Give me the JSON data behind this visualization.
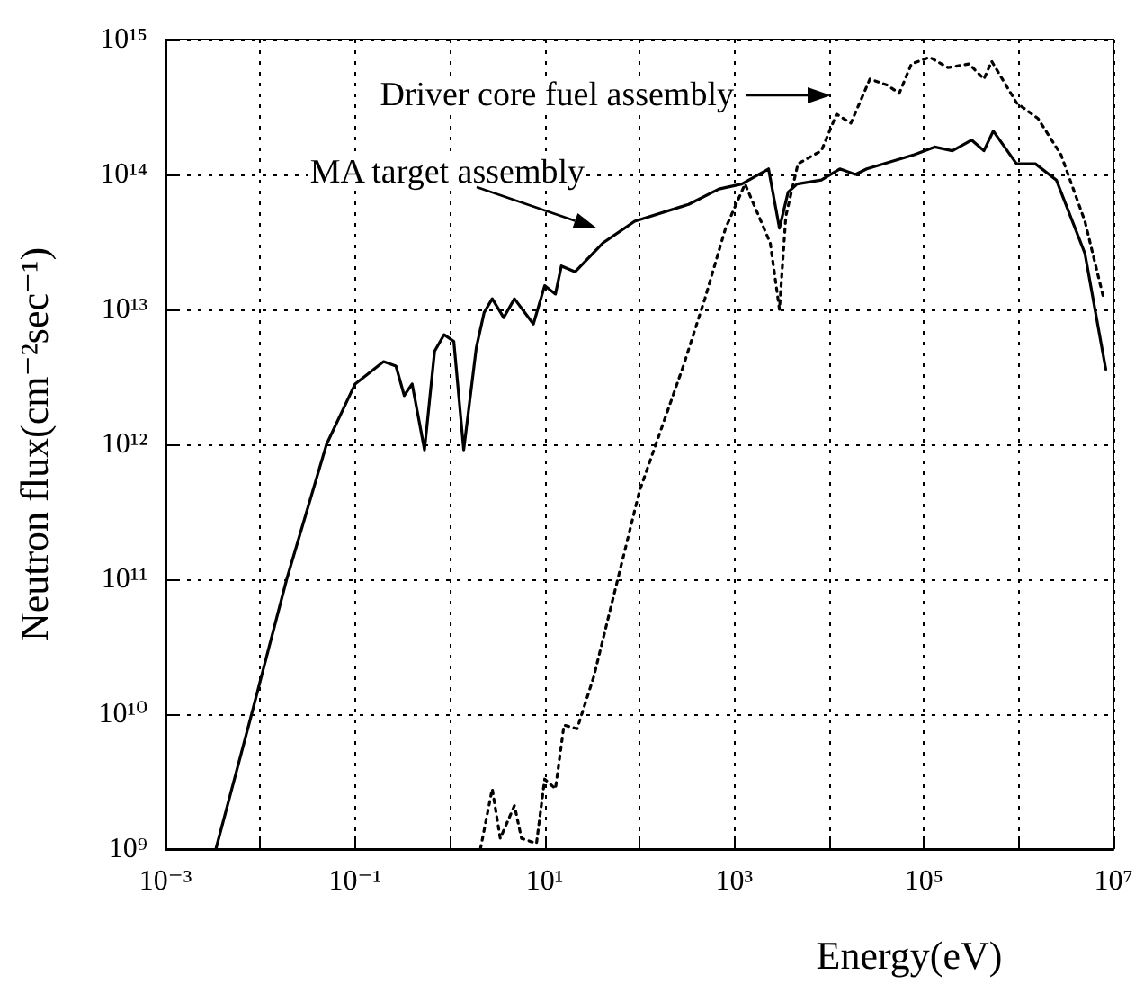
{
  "chart_data": {
    "type": "line",
    "xlabel": "Energy(eV)",
    "ylabel": "Neutron flux(cm⁻²sec⁻¹)",
    "log": "xy",
    "grid": true,
    "marker": "none",
    "xlim": [
      0.001,
      10000000
    ],
    "ylim": [
      1000000000,
      1000000000000000
    ],
    "xticks": [
      {
        "value": 0.001,
        "label": "10⁻³"
      },
      {
        "value": 0.01,
        "label": null
      },
      {
        "value": 0.1,
        "label": "10⁻¹"
      },
      {
        "value": 1,
        "label": null
      },
      {
        "value": 10,
        "label": "10¹"
      },
      {
        "value": 100,
        "label": null
      },
      {
        "value": 1000,
        "label": "10³"
      },
      {
        "value": 10000,
        "label": null
      },
      {
        "value": 100000,
        "label": "10⁵"
      },
      {
        "value": 1000000,
        "label": null
      },
      {
        "value": 10000000,
        "label": "10⁷"
      }
    ],
    "yticks": [
      {
        "value": 1000000000,
        "label": "10⁹"
      },
      {
        "value": 10000000000,
        "label": "10¹⁰"
      },
      {
        "value": 100000000000,
        "label": "10¹¹"
      },
      {
        "value": 1000000000000,
        "label": "10¹²"
      },
      {
        "value": 10000000000000,
        "label": "10¹³"
      },
      {
        "value": 100000000000000,
        "label": "10¹⁴"
      },
      {
        "value": 1000000000000000,
        "label": "10¹⁵"
      }
    ],
    "annotations": [
      "Driver core fuel assembly",
      "MA target assembly"
    ],
    "series": [
      {
        "color": "#000000",
        "line_style": "solid",
        "x": [
          0.0034,
          0.0081,
          0.019,
          0.05,
          0.1,
          0.2,
          0.27,
          0.33,
          0.4,
          0.54,
          0.69,
          0.87,
          1.1,
          1.4,
          1.9,
          2.3,
          2.8,
          3.7,
          4.8,
          7.6,
          10,
          13,
          15,
          21,
          41,
          89,
          330,
          690,
          1200,
          2300,
          3000,
          3700,
          4600,
          8300,
          13000,
          19000,
          25000,
          55000,
          79000,
          130000,
          200000,
          320000,
          430000,
          540000,
          950000,
          1500000,
          2500000,
          5000000,
          8300000
        ],
        "values": [
          1000000000.0,
          10000000000.0,
          100000000000.0,
          1000000000000.0,
          2800000000000.0,
          4100000000000.0,
          3800000000000.0,
          2300000000000.0,
          2800000000000.0,
          910000000000.0,
          4900000000000.0,
          6500000000000.0,
          5800000000000.0,
          910000000000.0,
          5200000000000.0,
          9500000000000.0,
          12000000000000.0,
          8700000000000.0,
          12000000000000.0,
          7800000000000.0,
          15000000000000.0,
          13000000000000.0,
          21000000000000.0,
          19000000000000.0,
          31000000000000.0,
          45000000000000.0,
          60000000000000.0,
          78000000000000.0,
          85000000000000.0,
          110000000000000.0,
          40000000000000.0,
          74000000000000.0,
          85000000000000.0,
          91000000000000.0,
          110000000000000.0,
          100000000000000.0,
          110000000000000.0,
          130000000000000.0,
          140000000000000.0,
          160000000000000.0,
          150000000000000.0,
          180000000000000.0,
          150000000000000.0,
          210000000000000.0,
          120000000000000.0,
          120000000000000.0,
          91000000000000.0,
          26000000000000.0,
          3600000000000.0
        ]
      },
      {
        "color": "#000000",
        "line_style": "dotted",
        "x": [
          2.1,
          2.8,
          3.4,
          4.8,
          5.7,
          8.2,
          10,
          13,
          16,
          22,
          33,
          100,
          290,
          490,
          810,
          1300,
          2400,
          3000,
          3500,
          4700,
          8300,
          12000,
          17000,
          27000,
          41000,
          55000,
          74000,
          115000,
          180000,
          300000,
          430000,
          520000,
          950000,
          1600000,
          2800000,
          5000000,
          7900000
        ],
        "values": [
          1000000000.0,
          2800000000.0,
          1200000000.0,
          2100000000.0,
          1200000000.0,
          1100000000.0,
          3300000000.0,
          2800000000.0,
          8300000000.0,
          7800000000.0,
          19000000000.0,
          450000000000.0,
          3800000000000.0,
          12000000000000.0,
          40000000000000.0,
          85000000000000.0,
          31000000000000.0,
          10000000000000.0,
          49000000000000.0,
          120000000000000.0,
          150000000000000.0,
          280000000000000.0,
          240000000000000.0,
          510000000000000.0,
          460000000000000.0,
          400000000000000.0,
          660000000000000.0,
          740000000000000.0,
          620000000000000.0,
          660000000000000.0,
          510000000000000.0,
          690000000000000.0,
          340000000000000.0,
          260000000000000.0,
          140000000000000.0,
          45000000000000.0,
          12000000000000.0
        ]
      }
    ]
  }
}
